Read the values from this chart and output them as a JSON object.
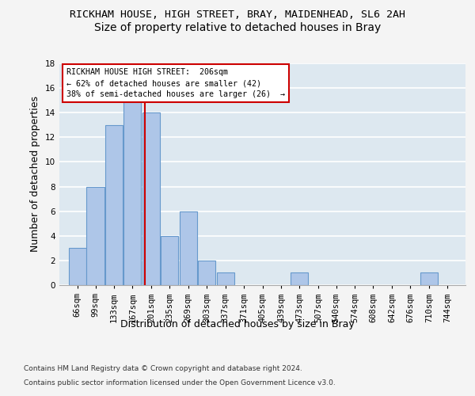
{
  "title1": "RICKHAM HOUSE, HIGH STREET, BRAY, MAIDENHEAD, SL6 2AH",
  "title2": "Size of property relative to detached houses in Bray",
  "xlabel": "Distribution of detached houses by size in Bray",
  "ylabel": "Number of detached properties",
  "bin_labels": [
    "66sqm",
    "99sqm",
    "133sqm",
    "167sqm",
    "201sqm",
    "235sqm",
    "269sqm",
    "303sqm",
    "337sqm",
    "371sqm",
    "405sqm",
    "439sqm",
    "473sqm",
    "507sqm",
    "540sqm",
    "574sqm",
    "608sqm",
    "642sqm",
    "676sqm",
    "710sqm",
    "744sqm"
  ],
  "bin_edges": [
    66,
    99,
    133,
    167,
    201,
    235,
    269,
    303,
    337,
    371,
    405,
    439,
    473,
    507,
    540,
    574,
    608,
    642,
    676,
    710,
    744
  ],
  "counts": [
    3,
    8,
    13,
    15,
    14,
    4,
    6,
    2,
    1,
    0,
    0,
    0,
    1,
    0,
    0,
    0,
    0,
    0,
    0,
    1,
    0
  ],
  "bar_color": "#aec6e8",
  "bar_edge_color": "#6699cc",
  "property_size": 206,
  "vline_color": "#cc0000",
  "annotation_text1": "RICKHAM HOUSE HIGH STREET:  206sqm",
  "annotation_text2": "← 62% of detached houses are smaller (42)",
  "annotation_text3": "38% of semi-detached houses are larger (26)  →",
  "annotation_box_color": "#ffffff",
  "annotation_box_edge": "#cc0000",
  "ylim": [
    0,
    18
  ],
  "yticks": [
    0,
    2,
    4,
    6,
    8,
    10,
    12,
    14,
    16,
    18
  ],
  "footer1": "Contains HM Land Registry data © Crown copyright and database right 2024.",
  "footer2": "Contains public sector information licensed under the Open Government Licence v3.0.",
  "bg_color": "#dde8f0",
  "grid_color": "#ffffff",
  "fig_bg_color": "#f4f4f4",
  "title1_fontsize": 9.5,
  "title2_fontsize": 10,
  "axis_fontsize": 9,
  "tick_fontsize": 7.5,
  "footer_fontsize": 6.5
}
